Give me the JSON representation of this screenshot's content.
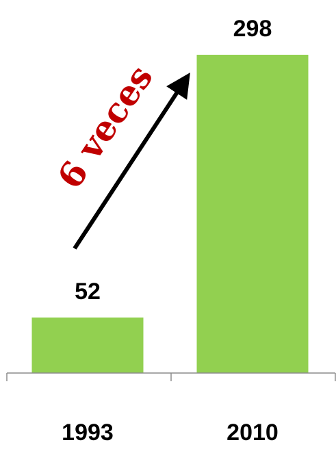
{
  "chart_data": {
    "type": "bar",
    "categories": [
      "1993",
      "2010"
    ],
    "values": [
      52,
      298
    ],
    "data_labels": [
      "52",
      "298"
    ],
    "ylim": [
      0,
      298
    ],
    "grid": false,
    "bar_color": "#92d050",
    "annotation": {
      "text": "6 veces",
      "color": "#c00000",
      "arrow_color": "#000000"
    }
  }
}
